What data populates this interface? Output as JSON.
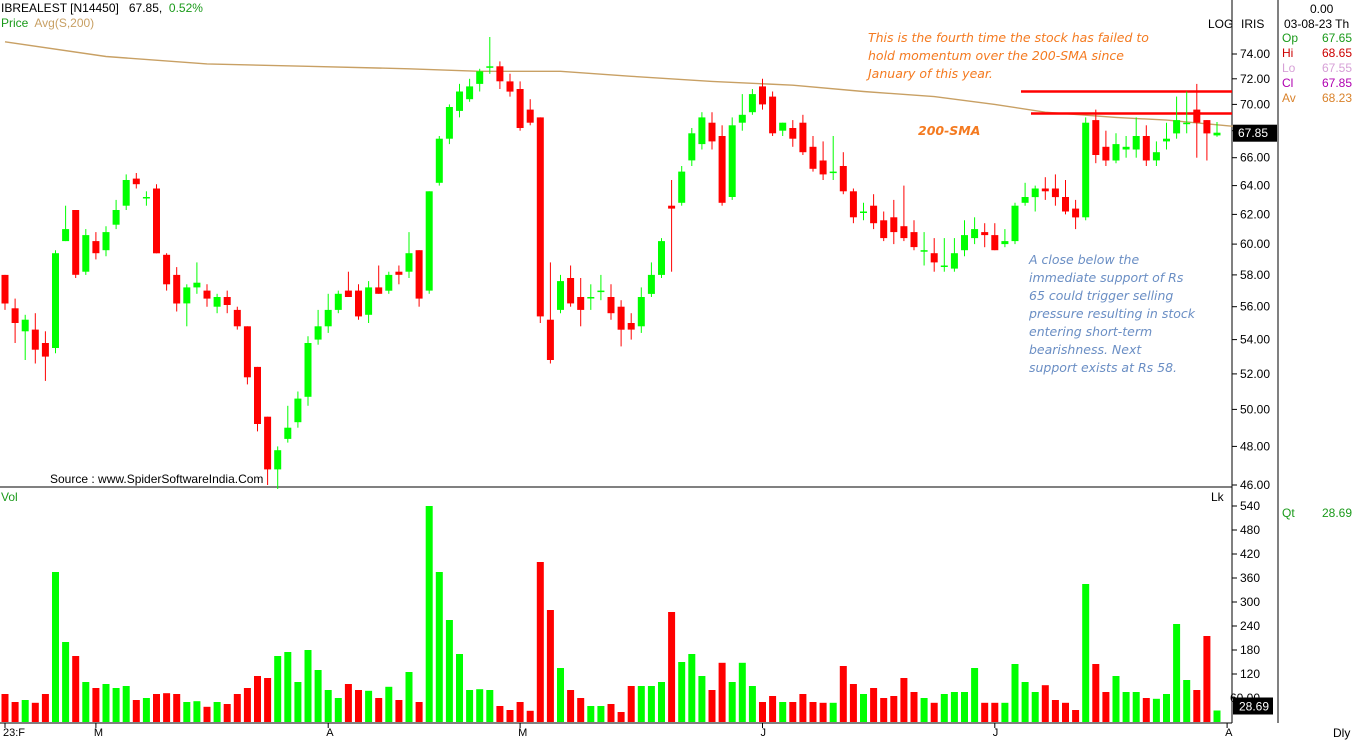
{
  "header": {
    "symbol": "IBREALEST [N14450]",
    "last": "67.85",
    "change_pct": "0.52%",
    "indicator_label": "Price",
    "indicator": "Avg(S,200)",
    "scale_mode": "LOG",
    "chart_name": "IRIS",
    "date": "03-08-23",
    "day": "Th",
    "zero": "0.00",
    "volume_label": "Vol",
    "volume_unit": "Lk",
    "period": "Dly",
    "source": "Source : www.SpiderSoftwareIndia.Com"
  },
  "ohlc_panel": {
    "open_label": "Op",
    "open": "67.65",
    "high_label": "Hi",
    "high": "68.65",
    "low_label": "Lo",
    "low": "67.55",
    "close_label": "Cl",
    "close": "67.85",
    "avg_label": "Av",
    "avg": "68.23",
    "qty_label": "Qt",
    "qty": "28.69"
  },
  "annotations": {
    "top": [
      "This is the fourth time the stock has failed to",
      "hold momentum over the 200-SMA since",
      "January of this year."
    ],
    "sma": "200-SMA",
    "support": [
      "A close below the",
      "immediate support of Rs",
      "65 could trigger selling",
      "pressure resulting in stock",
      "entering short-term",
      "bearishness.  Next",
      "support exists at Rs 58."
    ]
  },
  "colors": {
    "up": "#00ff00",
    "down": "#ff0000",
    "sma": "#c8a064",
    "annotation_orange": "#f47a20",
    "annotation_blue": "#6a8ec4",
    "resistance": "#ff0000"
  },
  "chart_data": {
    "type": "candlestick",
    "title": "IBREALEST [N14450]",
    "scale": "log",
    "price_ticks": [
      46,
      48,
      50,
      52,
      54,
      56,
      58,
      60,
      62,
      64,
      66,
      68,
      70,
      72,
      74
    ],
    "price_tick_labels": [
      "46.00",
      "48.00",
      "50.00",
      "52.00",
      "54.00",
      "56.00",
      "58.00",
      "60.00",
      "62.00",
      "64.00",
      "66.00",
      "68.00",
      "70.00",
      "72.00",
      "74.00"
    ],
    "last_price_label": "67.85",
    "volume_ticks": [
      60,
      120,
      180,
      240,
      300,
      360,
      420,
      480,
      540
    ],
    "volume_tick_labels": [
      "60.00",
      "120",
      "180",
      "240",
      "300",
      "360",
      "420",
      "480",
      "540"
    ],
    "last_volume_label": "28.69",
    "x_labels": [
      {
        "index": 0,
        "label": "23:F"
      },
      {
        "index": 9,
        "label": "M"
      },
      {
        "index": 32,
        "label": "A"
      },
      {
        "index": 51,
        "label": "M"
      },
      {
        "index": 75,
        "label": "J"
      },
      {
        "index": 98,
        "label": "J"
      },
      {
        "index": 121,
        "label": "A"
      }
    ],
    "resistance_levels": [
      71.0,
      69.3
    ],
    "candles": [
      {
        "o": 58.0,
        "h": 58.0,
        "l": 55.8,
        "c": 56.2,
        "v": 70
      },
      {
        "o": 55.9,
        "h": 56.5,
        "l": 53.8,
        "c": 55.0,
        "v": 50
      },
      {
        "o": 54.5,
        "h": 55.5,
        "l": 52.8,
        "c": 55.2,
        "v": 55
      },
      {
        "o": 54.6,
        "h": 55.6,
        "l": 52.6,
        "c": 53.4,
        "v": 48
      },
      {
        "o": 53.8,
        "h": 54.5,
        "l": 51.6,
        "c": 53.0,
        "v": 70
      },
      {
        "o": 53.5,
        "h": 59.6,
        "l": 53.2,
        "c": 59.4,
        "v": 375
      },
      {
        "o": 60.2,
        "h": 62.6,
        "l": 60.2,
        "c": 61.0,
        "v": 200
      },
      {
        "o": 62.3,
        "h": 62.3,
        "l": 57.8,
        "c": 58.0,
        "v": 165
      },
      {
        "o": 58.2,
        "h": 61.0,
        "l": 58.0,
        "c": 60.6,
        "v": 100
      },
      {
        "o": 60.2,
        "h": 60.8,
        "l": 59.0,
        "c": 59.4,
        "v": 85
      },
      {
        "o": 59.6,
        "h": 61.2,
        "l": 59.2,
        "c": 60.8,
        "v": 95
      },
      {
        "o": 61.3,
        "h": 63.0,
        "l": 61.0,
        "c": 62.3,
        "v": 85
      },
      {
        "o": 62.6,
        "h": 64.8,
        "l": 62.3,
        "c": 64.4,
        "v": 90
      },
      {
        "o": 64.5,
        "h": 64.9,
        "l": 63.8,
        "c": 64.1,
        "v": 55
      },
      {
        "o": 63.2,
        "h": 63.6,
        "l": 62.6,
        "c": 63.2,
        "v": 60
      },
      {
        "o": 63.8,
        "h": 64.1,
        "l": 59.4,
        "c": 59.4,
        "v": 70
      },
      {
        "o": 59.3,
        "h": 59.4,
        "l": 57.0,
        "c": 57.4,
        "v": 72
      },
      {
        "o": 58.0,
        "h": 58.5,
        "l": 55.7,
        "c": 56.2,
        "v": 70
      },
      {
        "o": 56.2,
        "h": 57.4,
        "l": 54.8,
        "c": 57.2,
        "v": 50
      },
      {
        "o": 57.2,
        "h": 58.8,
        "l": 56.8,
        "c": 57.5,
        "v": 52
      },
      {
        "o": 57.0,
        "h": 57.4,
        "l": 56.0,
        "c": 56.5,
        "v": 38
      },
      {
        "o": 56.0,
        "h": 56.8,
        "l": 55.6,
        "c": 56.6,
        "v": 50
      },
      {
        "o": 56.6,
        "h": 57.0,
        "l": 55.6,
        "c": 56.1,
        "v": 45
      },
      {
        "o": 55.8,
        "h": 56.0,
        "l": 54.6,
        "c": 54.8,
        "v": 70
      },
      {
        "o": 54.8,
        "h": 54.8,
        "l": 51.4,
        "c": 51.8,
        "v": 85
      },
      {
        "o": 52.4,
        "h": 52.4,
        "l": 48.8,
        "c": 49.2,
        "v": 115
      },
      {
        "o": 49.6,
        "h": 49.6,
        "l": 46.0,
        "c": 46.8,
        "v": 110
      },
      {
        "o": 46.8,
        "h": 48.0,
        "l": 45.8,
        "c": 47.8,
        "v": 165
      },
      {
        "o": 48.4,
        "h": 50.2,
        "l": 48.2,
        "c": 49.0,
        "v": 175
      },
      {
        "o": 49.3,
        "h": 51.0,
        "l": 49.0,
        "c": 50.6,
        "v": 100
      },
      {
        "o": 50.7,
        "h": 54.2,
        "l": 50.2,
        "c": 53.8,
        "v": 180
      },
      {
        "o": 54.0,
        "h": 55.8,
        "l": 53.7,
        "c": 54.8,
        "v": 130
      },
      {
        "o": 54.8,
        "h": 56.8,
        "l": 54.4,
        "c": 55.8,
        "v": 80
      },
      {
        "o": 55.8,
        "h": 57.0,
        "l": 55.6,
        "c": 56.8,
        "v": 60
      },
      {
        "o": 57.0,
        "h": 58.2,
        "l": 56.6,
        "c": 56.6,
        "v": 95
      },
      {
        "o": 57.0,
        "h": 57.4,
        "l": 55.2,
        "c": 55.4,
        "v": 80
      },
      {
        "o": 55.5,
        "h": 57.6,
        "l": 55.0,
        "c": 57.2,
        "v": 78
      },
      {
        "o": 57.2,
        "h": 58.6,
        "l": 56.8,
        "c": 56.8,
        "v": 60
      },
      {
        "o": 57.0,
        "h": 58.2,
        "l": 56.8,
        "c": 58.0,
        "v": 88
      },
      {
        "o": 58.2,
        "h": 58.6,
        "l": 57.4,
        "c": 58.0,
        "v": 55
      },
      {
        "o": 58.2,
        "h": 60.8,
        "l": 57.8,
        "c": 59.4,
        "v": 125
      },
      {
        "o": 59.6,
        "h": 59.6,
        "l": 56.0,
        "c": 56.5,
        "v": 50
      },
      {
        "o": 57.0,
        "h": 63.6,
        "l": 56.8,
        "c": 63.6,
        "v": 540
      },
      {
        "o": 64.2,
        "h": 67.6,
        "l": 64.0,
        "c": 67.4,
        "v": 375
      },
      {
        "o": 67.4,
        "h": 70.0,
        "l": 67.0,
        "c": 69.8,
        "v": 255
      },
      {
        "o": 69.5,
        "h": 71.6,
        "l": 69.0,
        "c": 71.0,
        "v": 170
      },
      {
        "o": 70.4,
        "h": 72.0,
        "l": 70.2,
        "c": 71.4,
        "v": 80
      },
      {
        "o": 71.6,
        "h": 72.8,
        "l": 71.0,
        "c": 72.6,
        "v": 82
      },
      {
        "o": 73.0,
        "h": 75.4,
        "l": 72.4,
        "c": 73.0,
        "v": 80
      },
      {
        "o": 73.0,
        "h": 73.4,
        "l": 71.2,
        "c": 71.8,
        "v": 40
      },
      {
        "o": 71.8,
        "h": 72.4,
        "l": 70.6,
        "c": 71.0,
        "v": 30
      },
      {
        "o": 71.2,
        "h": 71.8,
        "l": 68.0,
        "c": 68.2,
        "v": 50
      },
      {
        "o": 69.6,
        "h": 70.4,
        "l": 68.4,
        "c": 68.6,
        "v": 28
      },
      {
        "o": 69.0,
        "h": 69.0,
        "l": 55.0,
        "c": 55.4,
        "v": 400
      },
      {
        "o": 55.2,
        "h": 58.8,
        "l": 52.6,
        "c": 52.8,
        "v": 280
      },
      {
        "o": 55.8,
        "h": 58.0,
        "l": 55.6,
        "c": 57.6,
        "v": 135
      },
      {
        "o": 57.8,
        "h": 58.6,
        "l": 56.0,
        "c": 56.2,
        "v": 80
      },
      {
        "o": 56.6,
        "h": 57.8,
        "l": 54.8,
        "c": 55.8,
        "v": 60
      },
      {
        "o": 56.6,
        "h": 57.4,
        "l": 55.8,
        "c": 56.6,
        "v": 40
      },
      {
        "o": 57.0,
        "h": 58.0,
        "l": 56.4,
        "c": 57.0,
        "v": 40
      },
      {
        "o": 56.6,
        "h": 57.4,
        "l": 55.2,
        "c": 55.6,
        "v": 45
      },
      {
        "o": 56.0,
        "h": 56.4,
        "l": 53.6,
        "c": 54.6,
        "v": 25
      },
      {
        "o": 55.0,
        "h": 55.6,
        "l": 54.0,
        "c": 54.6,
        "v": 90
      },
      {
        "o": 54.8,
        "h": 57.2,
        "l": 54.4,
        "c": 56.6,
        "v": 90
      },
      {
        "o": 56.8,
        "h": 58.8,
        "l": 56.6,
        "c": 58.0,
        "v": 90
      },
      {
        "o": 58.0,
        "h": 60.4,
        "l": 57.8,
        "c": 60.2,
        "v": 100
      },
      {
        "o": 62.6,
        "h": 64.4,
        "l": 58.2,
        "c": 62.4,
        "v": 275
      },
      {
        "o": 62.8,
        "h": 65.4,
        "l": 62.6,
        "c": 65.0,
        "v": 150
      },
      {
        "o": 65.8,
        "h": 68.2,
        "l": 65.4,
        "c": 67.8,
        "v": 170
      },
      {
        "o": 67.0,
        "h": 69.4,
        "l": 66.6,
        "c": 69.0,
        "v": 115
      },
      {
        "o": 68.6,
        "h": 69.4,
        "l": 66.6,
        "c": 67.2,
        "v": 80
      },
      {
        "o": 67.6,
        "h": 68.4,
        "l": 62.6,
        "c": 62.8,
        "v": 148
      },
      {
        "o": 63.2,
        "h": 69.0,
        "l": 63.0,
        "c": 68.4,
        "v": 100
      },
      {
        "o": 68.6,
        "h": 70.8,
        "l": 68.0,
        "c": 69.2,
        "v": 148
      },
      {
        "o": 69.4,
        "h": 71.2,
        "l": 69.2,
        "c": 70.8,
        "v": 90
      },
      {
        "o": 71.4,
        "h": 72.0,
        "l": 69.6,
        "c": 70.0,
        "v": 50
      },
      {
        "o": 70.6,
        "h": 71.0,
        "l": 67.6,
        "c": 67.8,
        "v": 65
      },
      {
        "o": 68.0,
        "h": 68.6,
        "l": 67.6,
        "c": 68.6,
        "v": 50
      },
      {
        "o": 68.2,
        "h": 68.8,
        "l": 66.8,
        "c": 67.4,
        "v": 50
      },
      {
        "o": 68.6,
        "h": 69.2,
        "l": 66.2,
        "c": 66.4,
        "v": 70
      },
      {
        "o": 66.8,
        "h": 67.6,
        "l": 65.0,
        "c": 65.2,
        "v": 50
      },
      {
        "o": 65.8,
        "h": 67.2,
        "l": 64.4,
        "c": 64.8,
        "v": 48
      },
      {
        "o": 65.0,
        "h": 67.6,
        "l": 64.4,
        "c": 65.0,
        "v": 48
      },
      {
        "o": 65.4,
        "h": 66.4,
        "l": 63.4,
        "c": 63.6,
        "v": 140
      },
      {
        "o": 63.6,
        "h": 63.8,
        "l": 61.4,
        "c": 61.8,
        "v": 95
      },
      {
        "o": 62.2,
        "h": 62.8,
        "l": 61.6,
        "c": 62.2,
        "v": 70
      },
      {
        "o": 62.6,
        "h": 63.4,
        "l": 61.0,
        "c": 61.4,
        "v": 85
      },
      {
        "o": 61.6,
        "h": 62.2,
        "l": 60.2,
        "c": 60.4,
        "v": 60
      },
      {
        "o": 61.8,
        "h": 63.0,
        "l": 60.0,
        "c": 60.8,
        "v": 65
      },
      {
        "o": 61.2,
        "h": 64.0,
        "l": 60.2,
        "c": 60.4,
        "v": 110
      },
      {
        "o": 60.8,
        "h": 61.6,
        "l": 59.6,
        "c": 59.8,
        "v": 75
      },
      {
        "o": 59.6,
        "h": 60.8,
        "l": 58.6,
        "c": 59.6,
        "v": 60
      },
      {
        "o": 59.4,
        "h": 60.4,
        "l": 58.2,
        "c": 58.8,
        "v": 48
      },
      {
        "o": 58.6,
        "h": 60.4,
        "l": 58.2,
        "c": 58.6,
        "v": 70
      },
      {
        "o": 58.4,
        "h": 60.4,
        "l": 58.2,
        "c": 59.4,
        "v": 75
      },
      {
        "o": 59.6,
        "h": 61.6,
        "l": 59.2,
        "c": 60.6,
        "v": 75
      },
      {
        "o": 60.4,
        "h": 61.8,
        "l": 60.0,
        "c": 61.0,
        "v": 135
      },
      {
        "o": 60.8,
        "h": 61.4,
        "l": 59.8,
        "c": 60.6,
        "v": 48
      },
      {
        "o": 60.6,
        "h": 61.4,
        "l": 59.6,
        "c": 59.6,
        "v": 48
      },
      {
        "o": 60.0,
        "h": 61.0,
        "l": 59.8,
        "c": 60.2,
        "v": 48
      },
      {
        "o": 60.2,
        "h": 62.8,
        "l": 60.0,
        "c": 62.6,
        "v": 145
      },
      {
        "o": 62.8,
        "h": 64.2,
        "l": 62.6,
        "c": 63.2,
        "v": 100
      },
      {
        "o": 63.2,
        "h": 64.0,
        "l": 62.2,
        "c": 63.8,
        "v": 75
      },
      {
        "o": 63.8,
        "h": 64.6,
        "l": 63.0,
        "c": 63.6,
        "v": 92
      },
      {
        "o": 63.8,
        "h": 64.8,
        "l": 62.6,
        "c": 63.2,
        "v": 55
      },
      {
        "o": 63.2,
        "h": 64.4,
        "l": 62.0,
        "c": 62.2,
        "v": 48
      },
      {
        "o": 62.4,
        "h": 63.0,
        "l": 61.0,
        "c": 61.8,
        "v": 30
      },
      {
        "o": 61.8,
        "h": 69.0,
        "l": 61.6,
        "c": 68.6,
        "v": 345
      },
      {
        "o": 68.8,
        "h": 69.6,
        "l": 65.6,
        "c": 66.2,
        "v": 145
      },
      {
        "o": 66.8,
        "h": 68.0,
        "l": 65.4,
        "c": 65.8,
        "v": 75
      },
      {
        "o": 65.8,
        "h": 67.8,
        "l": 65.6,
        "c": 67.0,
        "v": 115
      },
      {
        "o": 66.6,
        "h": 67.6,
        "l": 66.0,
        "c": 66.8,
        "v": 75
      },
      {
        "o": 66.6,
        "h": 69.0,
        "l": 66.0,
        "c": 67.6,
        "v": 75
      },
      {
        "o": 67.6,
        "h": 68.4,
        "l": 65.4,
        "c": 65.8,
        "v": 60
      },
      {
        "o": 65.8,
        "h": 67.2,
        "l": 65.4,
        "c": 66.4,
        "v": 58
      },
      {
        "o": 67.2,
        "h": 68.6,
        "l": 66.6,
        "c": 67.4,
        "v": 70
      },
      {
        "o": 67.8,
        "h": 70.6,
        "l": 67.4,
        "c": 68.8,
        "v": 245
      },
      {
        "o": 68.6,
        "h": 71.0,
        "l": 67.8,
        "c": 68.6,
        "v": 105
      },
      {
        "o": 69.6,
        "h": 71.6,
        "l": 66.0,
        "c": 68.6,
        "v": 80
      },
      {
        "o": 68.8,
        "h": 68.8,
        "l": 65.8,
        "c": 67.8,
        "v": 215
      },
      {
        "o": 67.65,
        "h": 68.65,
        "l": 67.55,
        "c": 67.85,
        "v": 28.69
      }
    ],
    "sma200": [
      [
        0,
        75.0
      ],
      [
        10,
        73.8
      ],
      [
        20,
        73.2
      ],
      [
        30,
        73.0
      ],
      [
        40,
        72.8
      ],
      [
        47,
        72.6
      ],
      [
        55,
        72.6
      ],
      [
        62,
        72.2
      ],
      [
        70,
        71.8
      ],
      [
        78,
        71.5
      ],
      [
        85,
        71.0
      ],
      [
        92,
        70.6
      ],
      [
        98,
        70.0
      ],
      [
        103,
        69.4
      ],
      [
        110,
        69.0
      ],
      [
        115,
        68.8
      ],
      [
        122,
        68.3
      ]
    ]
  }
}
